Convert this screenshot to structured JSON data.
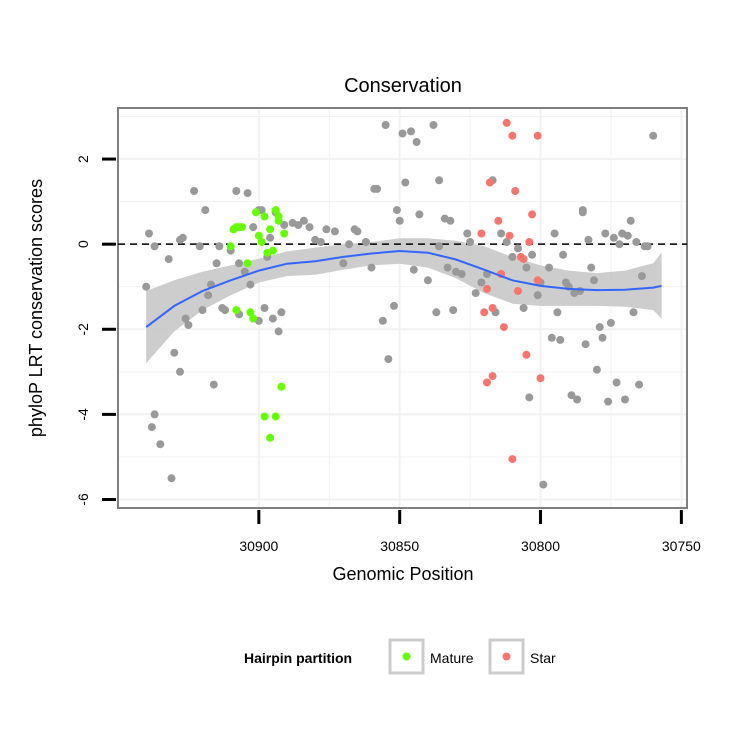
{
  "chart_data": {
    "type": "scatter",
    "title": "Conservation",
    "xlabel": "Genomic Position",
    "ylabel": "phyloP LRT conservation scores",
    "x_reversed": true,
    "xlim": [
      30950,
      30748
    ],
    "ylim": [
      -6.2,
      3.2
    ],
    "x_ticks": [
      30900,
      30850,
      30800,
      30750
    ],
    "y_ticks": [
      -6,
      -4,
      -2,
      0,
      2
    ],
    "reference_line": {
      "y": 0,
      "style": "dashed",
      "color": "#000000"
    },
    "grid": true,
    "background": "#ffffff",
    "panel_border_color": "#7f7f7f",
    "grid_color": "#f2f2f2",
    "legend": {
      "title": "Hairpin partition",
      "position": "bottom",
      "entries": [
        {
          "label": "Mature",
          "color": "#66ff00"
        },
        {
          "label": "Star",
          "color": "#f8766d"
        }
      ]
    },
    "smooth": {
      "color": "#3366ff",
      "ribbon_color": "#c8c8c8",
      "x": [
        30940,
        30930,
        30920,
        30910,
        30900,
        30890,
        30880,
        30870,
        30860,
        30850,
        30840,
        30830,
        30820,
        30810,
        30800,
        30790,
        30780,
        30770,
        30760,
        30757
      ],
      "y": [
        -1.95,
        -1.45,
        -1.1,
        -0.85,
        -0.62,
        -0.46,
        -0.4,
        -0.3,
        -0.22,
        -0.16,
        -0.2,
        -0.36,
        -0.6,
        -0.85,
        -0.98,
        -1.05,
        -1.08,
        -1.07,
        -1.02,
        -0.98
      ],
      "lower": [
        -2.8,
        -2.05,
        -1.55,
        -1.2,
        -0.9,
        -0.75,
        -0.72,
        -0.6,
        -0.5,
        -0.46,
        -0.55,
        -0.8,
        -1.15,
        -1.4,
        -1.45,
        -1.45,
        -1.45,
        -1.47,
        -1.55,
        -1.75
      ],
      "upper": [
        -1.1,
        -0.85,
        -0.65,
        -0.5,
        -0.34,
        -0.17,
        -0.08,
        0.0,
        0.05,
        0.14,
        0.14,
        0.08,
        -0.05,
        -0.3,
        -0.5,
        -0.62,
        -0.68,
        -0.62,
        -0.45,
        -0.2
      ]
    },
    "series": [
      {
        "name": "Grey",
        "color": "#999999",
        "points": [
          [
            30940,
            -1.0
          ],
          [
            30939,
            0.25
          ],
          [
            30937,
            -0.05
          ],
          [
            30938,
            -4.3
          ],
          [
            30937,
            -4.0
          ],
          [
            30935,
            -4.7
          ],
          [
            30932,
            -0.35
          ],
          [
            30931,
            -5.5
          ],
          [
            30930,
            -2.55
          ],
          [
            30928,
            0.1
          ],
          [
            30928,
            -3.0
          ],
          [
            30927,
            0.15
          ],
          [
            30926,
            -1.75
          ],
          [
            30925,
            -1.9
          ],
          [
            30923,
            1.25
          ],
          [
            30921,
            -0.05
          ],
          [
            30920,
            -1.55
          ],
          [
            30919,
            0.8
          ],
          [
            30918,
            -1.2
          ],
          [
            30917,
            -0.95
          ],
          [
            30916,
            -3.3
          ],
          [
            30915,
            -0.45
          ],
          [
            30914,
            -0.05
          ],
          [
            30913,
            -1.5
          ],
          [
            30912,
            -1.55
          ],
          [
            30910,
            -0.15
          ],
          [
            30908,
            1.25
          ],
          [
            30907,
            -0.45
          ],
          [
            30907,
            -1.65
          ],
          [
            30905,
            -0.65
          ],
          [
            30904,
            1.2
          ],
          [
            30903,
            -0.95
          ],
          [
            30902,
            0.4
          ],
          [
            30900,
            -1.8
          ],
          [
            30900,
            0.8
          ],
          [
            30899,
            0.8
          ],
          [
            30898,
            -1.5
          ],
          [
            30897,
            -0.3
          ],
          [
            30896,
            0.15
          ],
          [
            30895,
            -1.75
          ],
          [
            30894,
            0.75
          ],
          [
            30893,
            -2.05
          ],
          [
            30892,
            -1.6
          ],
          [
            30891,
            0.45
          ],
          [
            30888,
            0.5
          ],
          [
            30886,
            0.45
          ],
          [
            30884,
            0.55
          ],
          [
            30882,
            0.4
          ],
          [
            30880,
            0.1
          ],
          [
            30878,
            0.05
          ],
          [
            30876,
            0.35
          ],
          [
            30873,
            0.3
          ],
          [
            30870,
            -0.45
          ],
          [
            30868,
            0.0
          ],
          [
            30866,
            0.35
          ],
          [
            30865,
            0.3
          ],
          [
            30862,
            0.05
          ],
          [
            30860,
            -0.55
          ],
          [
            30859,
            1.3
          ],
          [
            30858,
            1.3
          ],
          [
            30856,
            -1.8
          ],
          [
            30855,
            2.8
          ],
          [
            30854,
            -2.7
          ],
          [
            30852,
            -1.45
          ],
          [
            30851,
            0.8
          ],
          [
            30850,
            0.55
          ],
          [
            30849,
            2.6
          ],
          [
            30848,
            1.45
          ],
          [
            30846,
            2.65
          ],
          [
            30845,
            -0.6
          ],
          [
            30844,
            2.4
          ],
          [
            30843,
            0.7
          ],
          [
            30840,
            -0.85
          ],
          [
            30838,
            2.8
          ],
          [
            30837,
            -1.6
          ],
          [
            30836,
            1.5
          ],
          [
            30836,
            -0.05
          ],
          [
            30834,
            0.6
          ],
          [
            30833,
            -0.55
          ],
          [
            30832,
            0.55
          ],
          [
            30831,
            -1.55
          ],
          [
            30830,
            -0.65
          ],
          [
            30828,
            -0.7
          ],
          [
            30826,
            0.25
          ],
          [
            30825,
            0.05
          ],
          [
            30823,
            -1.15
          ],
          [
            30821,
            -0.9
          ],
          [
            30819,
            -0.7
          ],
          [
            30817,
            1.5
          ],
          [
            30816,
            -1.6
          ],
          [
            30814,
            0.25
          ],
          [
            30812,
            0.05
          ],
          [
            30810,
            -0.3
          ],
          [
            30808,
            -0.1
          ],
          [
            30806,
            -1.5
          ],
          [
            30805,
            -0.55
          ],
          [
            30804,
            -3.6
          ],
          [
            30803,
            -0.25
          ],
          [
            30801,
            -1.2
          ],
          [
            30800,
            -0.9
          ],
          [
            30799,
            -5.65
          ],
          [
            30797,
            -0.55
          ],
          [
            30796,
            -2.2
          ],
          [
            30795,
            0.25
          ],
          [
            30794,
            -1.6
          ],
          [
            30793,
            -2.25
          ],
          [
            30792,
            -0.25
          ],
          [
            30791,
            -0.9
          ],
          [
            30790,
            -1.0
          ],
          [
            30789,
            -3.55
          ],
          [
            30788,
            -1.15
          ],
          [
            30787,
            -3.65
          ],
          [
            30786,
            -1.1
          ],
          [
            30785,
            0.75
          ],
          [
            30785,
            0.8
          ],
          [
            30784,
            -2.35
          ],
          [
            30783,
            0.1
          ],
          [
            30782,
            -0.55
          ],
          [
            30781,
            -0.85
          ],
          [
            30780,
            -2.95
          ],
          [
            30779,
            -1.95
          ],
          [
            30778,
            -2.2
          ],
          [
            30777,
            0.25
          ],
          [
            30776,
            -3.7
          ],
          [
            30775,
            -1.85
          ],
          [
            30774,
            0.15
          ],
          [
            30773,
            -3.25
          ],
          [
            30772,
            0.0
          ],
          [
            30771,
            0.25
          ],
          [
            30770,
            -3.65
          ],
          [
            30769,
            0.2
          ],
          [
            30768,
            0.55
          ],
          [
            30767,
            -1.6
          ],
          [
            30766,
            0.05
          ],
          [
            30765,
            -3.3
          ],
          [
            30764,
            -0.75
          ],
          [
            30763,
            -0.05
          ],
          [
            30762,
            -0.05
          ],
          [
            30760,
            2.55
          ]
        ]
      },
      {
        "name": "Mature",
        "color": "#66ff00",
        "points": [
          [
            30910,
            -0.05
          ],
          [
            30909,
            0.35
          ],
          [
            30908,
            -1.55
          ],
          [
            30908,
            0.4
          ],
          [
            30907,
            0.4
          ],
          [
            30906,
            0.4
          ],
          [
            30904,
            -0.45
          ],
          [
            30903,
            -1.6
          ],
          [
            30902,
            -1.75
          ],
          [
            30901,
            0.75
          ],
          [
            30900,
            0.2
          ],
          [
            30899,
            0.05
          ],
          [
            30898,
            -4.05
          ],
          [
            30898,
            0.65
          ],
          [
            30897,
            -0.2
          ],
          [
            30896,
            -4.55
          ],
          [
            30896,
            0.35
          ],
          [
            30895,
            -0.15
          ],
          [
            30894,
            -4.05
          ],
          [
            30894,
            0.8
          ],
          [
            30893,
            0.55
          ],
          [
            30893,
            0.65
          ],
          [
            30892,
            -3.35
          ],
          [
            30891,
            0.25
          ]
        ]
      },
      {
        "name": "Star",
        "color": "#f8766d",
        "points": [
          [
            30821,
            0.25
          ],
          [
            30820,
            -1.6
          ],
          [
            30819,
            -1.05
          ],
          [
            30819,
            -3.25
          ],
          [
            30818,
            1.45
          ],
          [
            30817,
            -1.5
          ],
          [
            30817,
            -3.1
          ],
          [
            30815,
            0.55
          ],
          [
            30814,
            -0.7
          ],
          [
            30813,
            -1.95
          ],
          [
            30812,
            2.85
          ],
          [
            30811,
            0.2
          ],
          [
            30810,
            -5.05
          ],
          [
            30810,
            2.55
          ],
          [
            30809,
            1.25
          ],
          [
            30808,
            -1.1
          ],
          [
            30807,
            -0.3
          ],
          [
            30806,
            -0.35
          ],
          [
            30805,
            -2.6
          ],
          [
            30804,
            0.05
          ],
          [
            30803,
            0.7
          ],
          [
            30801,
            -0.85
          ],
          [
            30801,
            2.55
          ],
          [
            30800,
            -3.15
          ]
        ]
      }
    ]
  }
}
